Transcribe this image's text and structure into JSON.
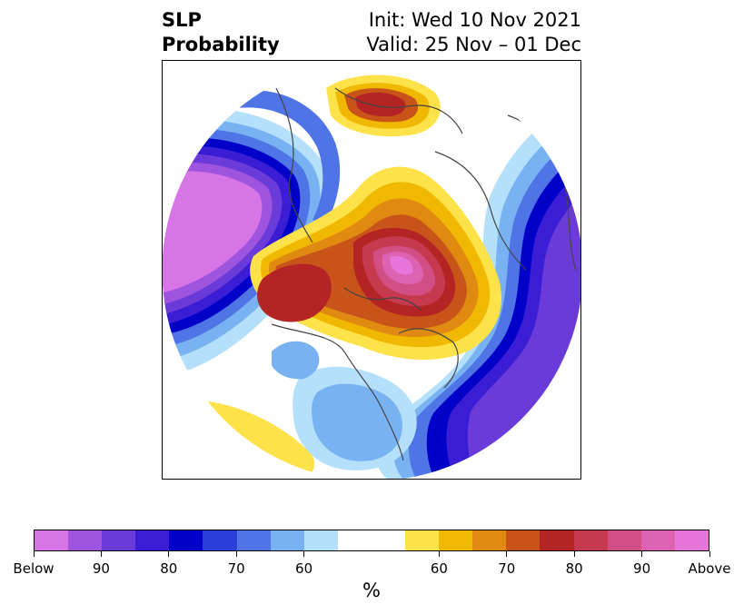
{
  "title": {
    "left_line1": "SLP",
    "left_line2": "Probability",
    "right_line1": "Init: Wed 10 Nov 2021",
    "right_line2": "Valid: 25 Nov – 01 Dec"
  },
  "colorbar": {
    "colors": [
      "#d774e6",
      "#9f54e0",
      "#6a3bd8",
      "#3a1dd4",
      "#0000c8",
      "#2a3ed8",
      "#4e74e6",
      "#78b2f2",
      "#b4e0fb",
      "#ffffff",
      "#ffffff",
      "#fee24a",
      "#f1b802",
      "#e08a12",
      "#c8541a",
      "#b42424",
      "#c63a50",
      "#d24f86",
      "#de62b2",
      "#e776da"
    ],
    "labels": [
      "Below",
      "90",
      "80",
      "70",
      "60",
      "60",
      "70",
      "80",
      "90",
      "Above"
    ],
    "unit": "%"
  },
  "map": {
    "projection": "north-polar-stereographic",
    "field": "SLP probability"
  }
}
